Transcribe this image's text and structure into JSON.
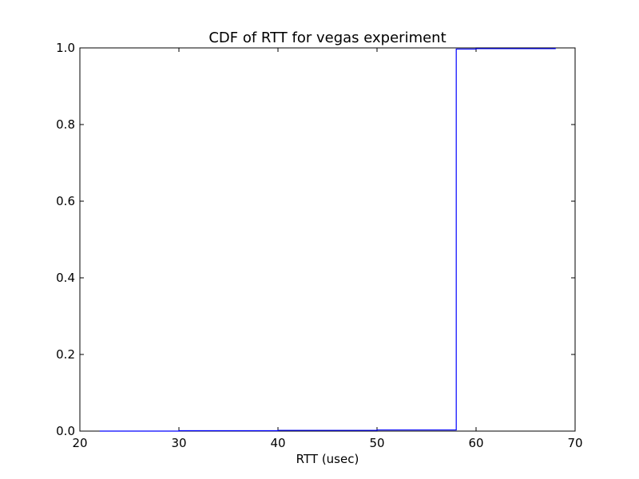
{
  "chart_data": {
    "type": "line",
    "title": "CDF of RTT for vegas experiment",
    "xlabel": "RTT (usec)",
    "ylabel": "",
    "xlim": [
      20,
      70
    ],
    "ylim": [
      0.0,
      1.0
    ],
    "x_ticks": [
      20,
      30,
      40,
      50,
      60,
      70
    ],
    "x_tick_labels": [
      "20",
      "30",
      "40",
      "50",
      "60",
      "70"
    ],
    "y_ticks": [
      0.0,
      0.2,
      0.4,
      0.6,
      0.8,
      1.0
    ],
    "y_tick_labels": [
      "0.0",
      "0.2",
      "0.4",
      "0.6",
      "0.8",
      "1.0"
    ],
    "grid": false,
    "series": [
      {
        "color": "#0000ff",
        "step": true,
        "x": [
          22,
          30,
          40,
          50,
          58,
          58,
          60,
          68
        ],
        "y": [
          0.0,
          0.001,
          0.002,
          0.003,
          0.003,
          0.997,
          0.998,
          1.0
        ]
      }
    ]
  }
}
